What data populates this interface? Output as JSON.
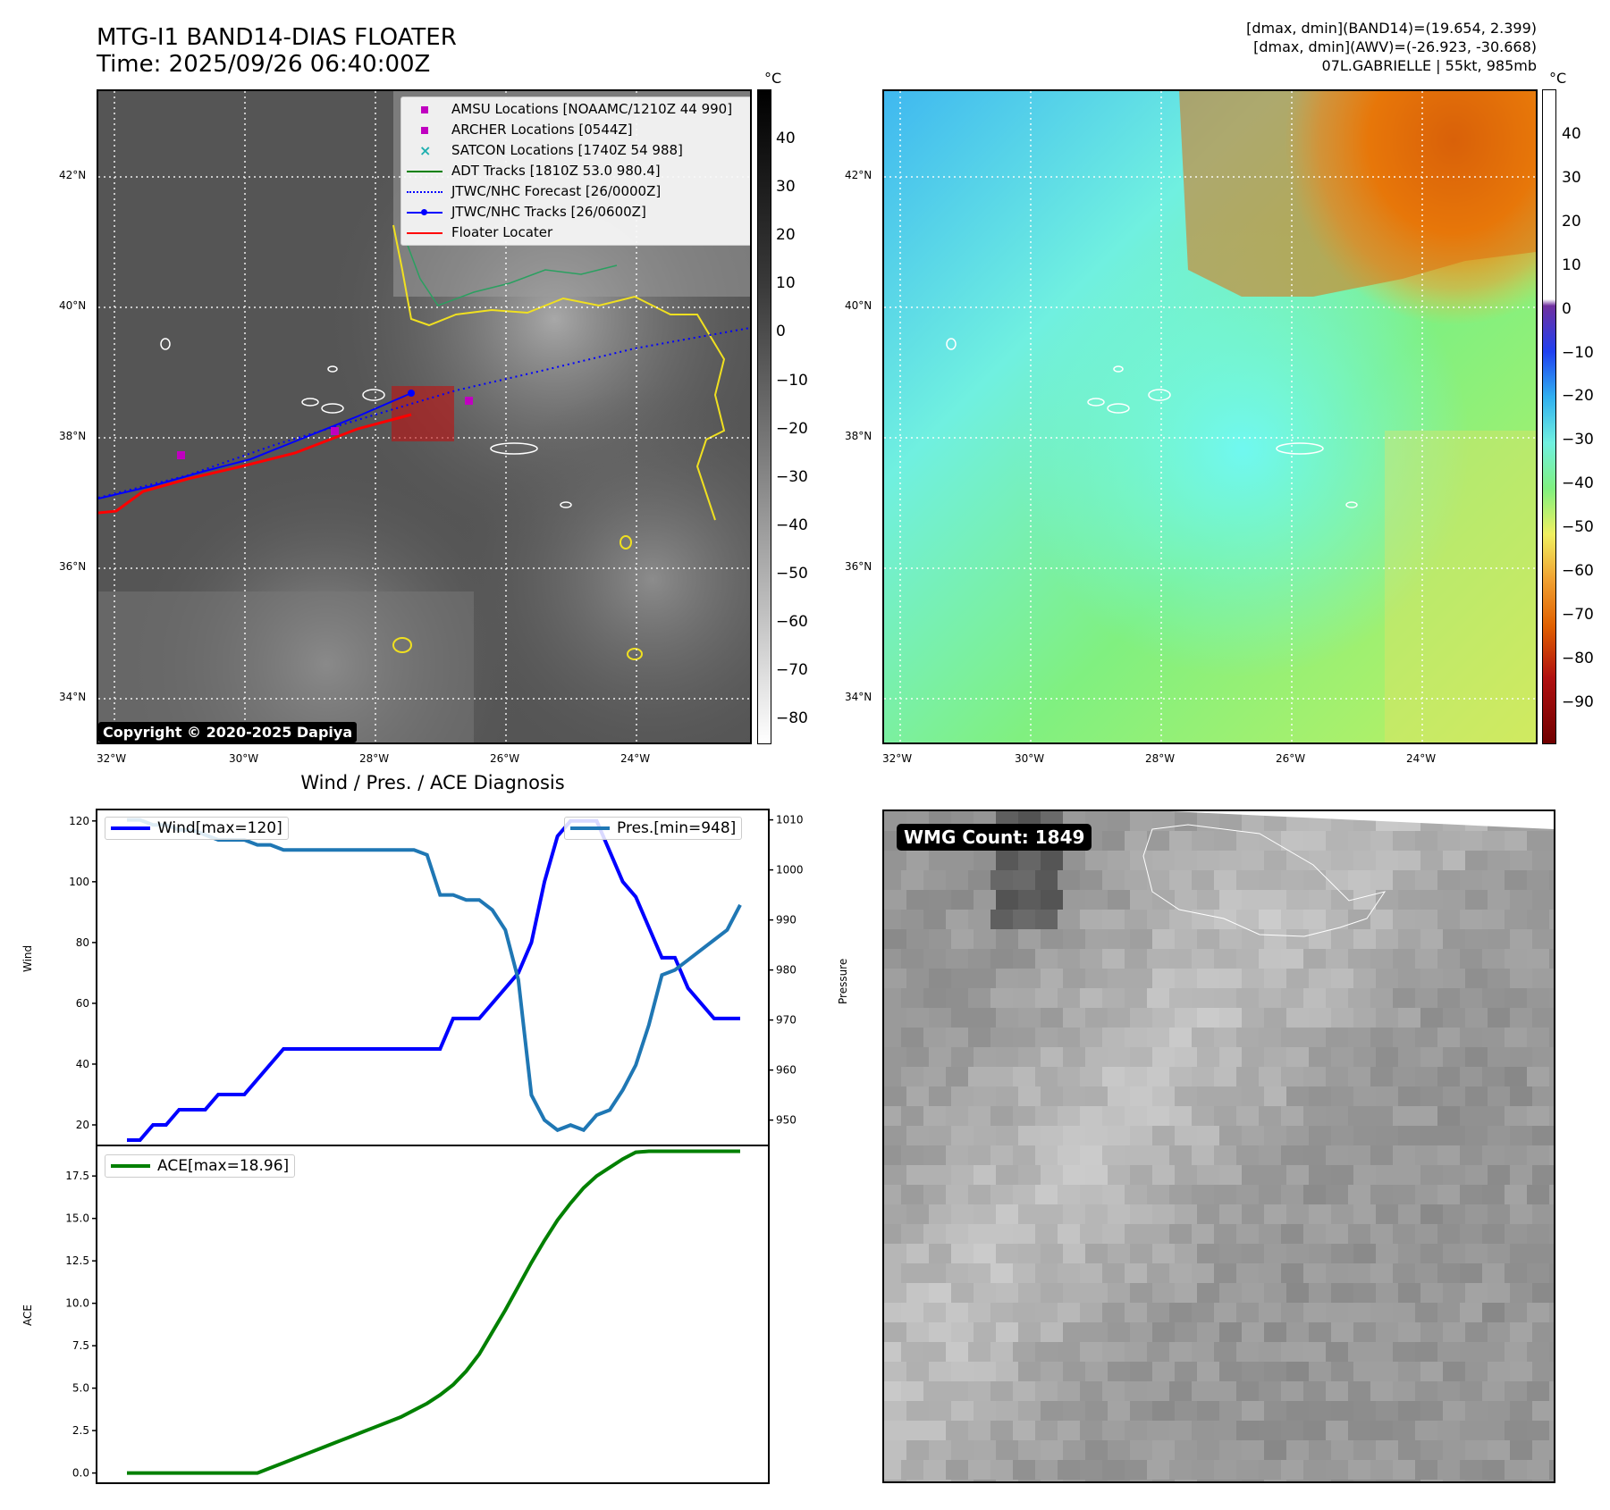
{
  "header": {
    "title_line1": "MTG-I1 BAND14-DIAS FLOATER",
    "title_line2": "Time: 2025/09/26 06:40:00Z",
    "right_line1": "[dmax, dmin](BAND14)=(19.654, 2.399)",
    "right_line2": "[dmax, dmin](AWV)=(-26.923, -30.668)",
    "right_line3": "07L.GABRIELLE | 55kt, 985mb"
  },
  "map": {
    "lat_labels": [
      "42°N",
      "40°N",
      "38°N",
      "36°N",
      "34°N"
    ],
    "lon_labels": [
      "32°W",
      "30°W",
      "28°W",
      "26°W",
      "24°W"
    ],
    "colorbar_unit": "°C",
    "colorbar_left_ticks": [
      "40",
      "30",
      "20",
      "10",
      "0",
      "−10",
      "−20",
      "−30",
      "−40",
      "−50",
      "−60",
      "−70",
      "−80"
    ],
    "colorbar_right_ticks": [
      "40",
      "30",
      "20",
      "10",
      "0",
      "−10",
      "−20",
      "−30",
      "−40",
      "−50",
      "−60",
      "−70",
      "−80",
      "−90"
    ],
    "copyright": "Copyright © 2020-2025 Dapiya",
    "legend": [
      {
        "label": "AMSU Locations [NOAAMC/1210Z 44 990]",
        "marker": "square",
        "color": "#c000c0"
      },
      {
        "label": "ARCHER Locations [0544Z]",
        "marker": "square",
        "color": "#c000c0"
      },
      {
        "label": "SATCON Locations [1740Z 54 988]",
        "marker": "x",
        "color": "#20b0b0"
      },
      {
        "label": "ADT Tracks [1810Z 53.0 980.4]",
        "marker": "line",
        "color": "#008000"
      },
      {
        "label": "JTWC/NHC Forecast [26/0000Z]",
        "marker": "dotted",
        "color": "#0000ff"
      },
      {
        "label": "JTWC/NHC Tracks [26/0600Z]",
        "marker": "line-dot",
        "color": "#0000ff"
      },
      {
        "label": "Floater Locater",
        "marker": "line",
        "color": "#ff0000"
      }
    ],
    "track_colors": {
      "jtwc": "#0000ff",
      "floater": "#ff0000",
      "adt": "#008000",
      "amsu": "#c000c0",
      "coast": "#ffffff",
      "contour": "#f0e020"
    }
  },
  "diagnosis": {
    "title": "Wind / Pres. / ACE Diagnosis",
    "wind_legend": "Wind[max=120]",
    "pres_legend": "Pres.[min=948]",
    "ace_legend": "ACE[max=18.96]",
    "wind_axis_label": "Wind",
    "pres_axis_label": "Pressure",
    "ace_axis_label": "ACE",
    "wind_ticks": [
      "120",
      "100",
      "80",
      "60",
      "40",
      "20"
    ],
    "pres_ticks": [
      "1010",
      "1000",
      "990",
      "980",
      "970",
      "960",
      "950"
    ],
    "ace_ticks": [
      "17.5",
      "15.0",
      "12.5",
      "10.0",
      "7.5",
      "5.0",
      "2.5",
      "0.0"
    ]
  },
  "wmg": {
    "label": "WMG Count: 1849"
  },
  "chart_data": [
    {
      "type": "line",
      "series": [
        {
          "name": "Wind[max=120]",
          "axis": "left",
          "color": "#0000ff",
          "x": [
            0,
            1,
            2,
            3,
            4,
            5,
            6,
            7,
            8,
            9,
            10,
            11,
            12,
            13,
            14,
            15,
            16,
            17,
            18,
            19,
            20,
            21,
            22,
            23,
            24,
            25,
            26,
            27,
            28,
            29,
            30,
            31,
            32,
            33,
            34,
            35,
            36,
            37,
            38,
            39,
            40,
            41,
            42,
            43,
            44,
            45,
            46,
            47
          ],
          "values": [
            15,
            15,
            20,
            20,
            25,
            25,
            25,
            30,
            30,
            30,
            35,
            40,
            45,
            45,
            45,
            45,
            45,
            45,
            45,
            45,
            45,
            45,
            45,
            45,
            45,
            55,
            55,
            55,
            60,
            65,
            70,
            80,
            100,
            115,
            120,
            120,
            120,
            110,
            100,
            95,
            85,
            75,
            75,
            65,
            60,
            55,
            55,
            55
          ]
        },
        {
          "name": "Pres.[min=948]",
          "axis": "right",
          "color": "#1f77b4",
          "x": [
            0,
            1,
            2,
            3,
            4,
            5,
            6,
            7,
            8,
            9,
            10,
            11,
            12,
            13,
            14,
            15,
            16,
            17,
            18,
            19,
            20,
            21,
            22,
            23,
            24,
            25,
            26,
            27,
            28,
            29,
            30,
            31,
            32,
            33,
            34,
            35,
            36,
            37,
            38,
            39,
            40,
            41,
            42,
            43,
            44,
            45,
            46,
            47
          ],
          "values": [
            1010,
            1010,
            1009,
            1009,
            1008,
            1008,
            1007,
            1006,
            1006,
            1006,
            1005,
            1005,
            1004,
            1004,
            1004,
            1004,
            1004,
            1004,
            1004,
            1004,
            1004,
            1004,
            1004,
            1003,
            995,
            995,
            994,
            994,
            992,
            988,
            978,
            955,
            950,
            948,
            949,
            948,
            951,
            952,
            956,
            961,
            969,
            979,
            980,
            982,
            984,
            986,
            988,
            993
          ]
        }
      ],
      "ylim_left": [
        15,
        122
      ],
      "ylim_right": [
        946,
        1011
      ],
      "ylabel_left": "Wind",
      "ylabel_right": "Pressure",
      "legend": "top-left / top-right"
    },
    {
      "type": "line",
      "series": [
        {
          "name": "ACE[max=18.96]",
          "color": "#008000",
          "x": [
            0,
            1,
            2,
            3,
            4,
            5,
            6,
            7,
            8,
            9,
            10,
            11,
            12,
            13,
            14,
            15,
            16,
            17,
            18,
            19,
            20,
            21,
            22,
            23,
            24,
            25,
            26,
            27,
            28,
            29,
            30,
            31,
            32,
            33,
            34,
            35,
            36,
            37,
            38,
            39,
            40,
            41,
            42,
            43,
            44,
            45,
            46,
            47
          ],
          "values": [
            0,
            0,
            0,
            0,
            0,
            0,
            0,
            0,
            0,
            0,
            0,
            0.3,
            0.6,
            0.9,
            1.2,
            1.5,
            1.8,
            2.1,
            2.4,
            2.7,
            3.0,
            3.3,
            3.7,
            4.1,
            4.6,
            5.2,
            6.0,
            7.0,
            8.3,
            9.6,
            11.0,
            12.4,
            13.7,
            14.9,
            15.9,
            16.8,
            17.5,
            18.0,
            18.5,
            18.9,
            18.96,
            18.96,
            18.96,
            18.96,
            18.96,
            18.96,
            18.96,
            18.96
          ]
        }
      ],
      "ylim": [
        -0.6,
        19.3
      ],
      "ylabel": "ACE",
      "legend": "top-left"
    }
  ]
}
